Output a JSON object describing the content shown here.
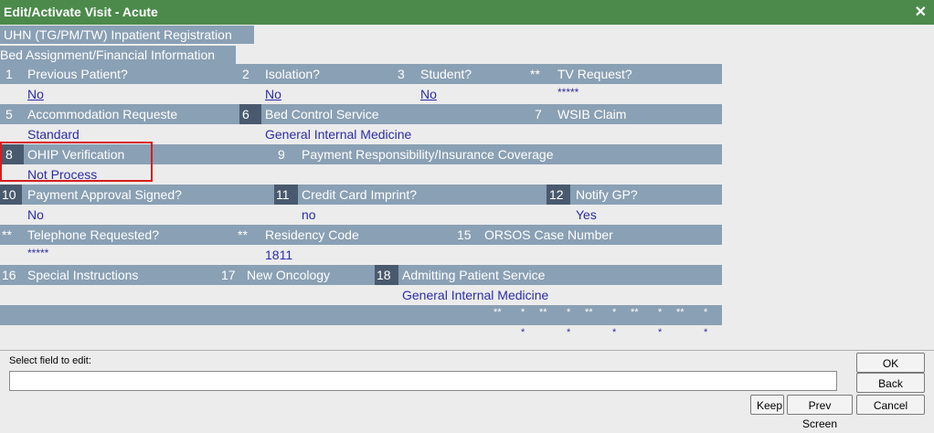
{
  "window": {
    "title": "Edit/Activate Visit - Acute",
    "close_glyph": "✕"
  },
  "headers": {
    "registration": "UHN (TG/PM/TW) Inpatient Registration",
    "section": "Bed Assignment/Financial Information"
  },
  "fields": {
    "f1": {
      "num": "1",
      "label": "Previous Patient?",
      "value": "No"
    },
    "f2": {
      "num": "2",
      "label": "Isolation?",
      "value": "No"
    },
    "f3": {
      "num": "3",
      "label": "Student?",
      "value": "No"
    },
    "ftv": {
      "num": "**",
      "label": "TV Request?",
      "value": "*****"
    },
    "f5": {
      "num": "5",
      "label": "Accommodation Requeste",
      "value": "Standard"
    },
    "f6": {
      "num": "6",
      "label": "Bed Control Service",
      "value": "General Internal Medicine"
    },
    "f7": {
      "num": "7",
      "label": "WSIB Claim",
      "value": ""
    },
    "f8": {
      "num": "8",
      "label": "OHIP Verification",
      "value": "Not Process"
    },
    "f9": {
      "num": "9",
      "label": "Payment Responsibility/Insurance Coverage",
      "value": ""
    },
    "f10": {
      "num": "10",
      "label": "Payment Approval Signed?",
      "value": "No"
    },
    "f11": {
      "num": "11",
      "label": "Credit Card Imprint?",
      "value": "no"
    },
    "f12": {
      "num": "12",
      "label": "Notify GP?",
      "value": "Yes"
    },
    "ftel": {
      "num": "**",
      "label": "Telephone Requested?",
      "value": "*****"
    },
    "fres": {
      "num": "**",
      "label": "Residency Code",
      "value": "1811"
    },
    "f15": {
      "num": "15",
      "label": "ORSOS Case Number",
      "value": ""
    },
    "f16": {
      "num": "16",
      "label": "Special Instructions",
      "value": ""
    },
    "f17": {
      "num": "17",
      "label": "New Oncology",
      "value": ""
    },
    "f18": {
      "num": "18",
      "label": "Admitting Patient Service",
      "value": "General Internal Medicine"
    }
  },
  "extra_row": {
    "labels": [
      "**",
      "*",
      "**",
      "*",
      "**",
      "*",
      "**",
      "*",
      "**",
      "*"
    ],
    "values": [
      "*",
      "*",
      "*",
      "*",
      "*"
    ]
  },
  "bottom": {
    "prompt": "Select field to edit:",
    "input_value": "",
    "buttons": {
      "ok": "OK",
      "back": "Back",
      "keep": "Keep",
      "prev": "Prev Screen",
      "cancel": "Cancel"
    }
  }
}
